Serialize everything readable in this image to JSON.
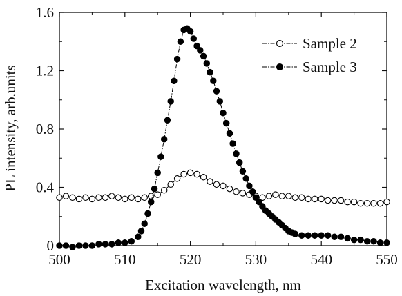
{
  "chart_data": {
    "type": "scatter",
    "xlabel": "Excitation wavelength, nm",
    "ylabel": "PL intensity, arb.units",
    "xlim": [
      500,
      550
    ],
    "ylim": [
      0,
      1.6
    ],
    "x_ticks": [
      "500",
      "510",
      "520",
      "530",
      "540",
      "550"
    ],
    "y_ticks": [
      "0",
      "0.4",
      "0.8",
      "1.2",
      "1.6"
    ],
    "grid": false,
    "legend_position": "top-right",
    "series": [
      {
        "name": "Sample 2",
        "marker": "open-circle",
        "line": "dash-dot",
        "color": "#000000",
        "points": [
          [
            500,
            0.33
          ],
          [
            501,
            0.34
          ],
          [
            502,
            0.33
          ],
          [
            503,
            0.32
          ],
          [
            504,
            0.33
          ],
          [
            505,
            0.32
          ],
          [
            506,
            0.33
          ],
          [
            507,
            0.33
          ],
          [
            508,
            0.34
          ],
          [
            509,
            0.33
          ],
          [
            510,
            0.32
          ],
          [
            511,
            0.33
          ],
          [
            512,
            0.32
          ],
          [
            513,
            0.33
          ],
          [
            514,
            0.34
          ],
          [
            515,
            0.35
          ],
          [
            516,
            0.38
          ],
          [
            517,
            0.42
          ],
          [
            518,
            0.46
          ],
          [
            519,
            0.49
          ],
          [
            520,
            0.5
          ],
          [
            521,
            0.49
          ],
          [
            522,
            0.47
          ],
          [
            523,
            0.44
          ],
          [
            524,
            0.42
          ],
          [
            525,
            0.41
          ],
          [
            526,
            0.39
          ],
          [
            527,
            0.37
          ],
          [
            528,
            0.36
          ],
          [
            529,
            0.35
          ],
          [
            530,
            0.34
          ],
          [
            531,
            0.33
          ],
          [
            532,
            0.34
          ],
          [
            533,
            0.35
          ],
          [
            534,
            0.34
          ],
          [
            535,
            0.34
          ],
          [
            536,
            0.33
          ],
          [
            537,
            0.33
          ],
          [
            538,
            0.32
          ],
          [
            539,
            0.32
          ],
          [
            540,
            0.32
          ],
          [
            541,
            0.31
          ],
          [
            542,
            0.31
          ],
          [
            543,
            0.31
          ],
          [
            544,
            0.3
          ],
          [
            545,
            0.3
          ],
          [
            546,
            0.29
          ],
          [
            547,
            0.29
          ],
          [
            548,
            0.29
          ],
          [
            549,
            0.29
          ],
          [
            550,
            0.3
          ]
        ]
      },
      {
        "name": "Sample 3",
        "marker": "filled-circle",
        "line": "dash-dot",
        "color": "#000000",
        "points": [
          [
            500,
            0.0
          ],
          [
            501,
            0.0
          ],
          [
            502,
            -0.01
          ],
          [
            503,
            0.0
          ],
          [
            504,
            0.0
          ],
          [
            505,
            0.0
          ],
          [
            506,
            0.01
          ],
          [
            507,
            0.01
          ],
          [
            508,
            0.01
          ],
          [
            509,
            0.02
          ],
          [
            510,
            0.02
          ],
          [
            511,
            0.03
          ],
          [
            512,
            0.06
          ],
          [
            512.5,
            0.1
          ],
          [
            513,
            0.15
          ],
          [
            513.5,
            0.22
          ],
          [
            514,
            0.3
          ],
          [
            514.5,
            0.39
          ],
          [
            515,
            0.5
          ],
          [
            515.5,
            0.61
          ],
          [
            516,
            0.73
          ],
          [
            516.5,
            0.86
          ],
          [
            517,
            0.99
          ],
          [
            517.5,
            1.13
          ],
          [
            518,
            1.28
          ],
          [
            518.5,
            1.4
          ],
          [
            519,
            1.48
          ],
          [
            519.5,
            1.49
          ],
          [
            520,
            1.47
          ],
          [
            520.5,
            1.42
          ],
          [
            521,
            1.37
          ],
          [
            521.5,
            1.34
          ],
          [
            522,
            1.3
          ],
          [
            522.5,
            1.25
          ],
          [
            523,
            1.19
          ],
          [
            523.5,
            1.13
          ],
          [
            524,
            1.06
          ],
          [
            524.5,
            0.99
          ],
          [
            525,
            0.91
          ],
          [
            525.5,
            0.84
          ],
          [
            526,
            0.77
          ],
          [
            526.5,
            0.7
          ],
          [
            527,
            0.63
          ],
          [
            527.5,
            0.57
          ],
          [
            528,
            0.51
          ],
          [
            528.5,
            0.46
          ],
          [
            529,
            0.41
          ],
          [
            529.5,
            0.37
          ],
          [
            530,
            0.33
          ],
          [
            530.5,
            0.3
          ],
          [
            531,
            0.27
          ],
          [
            531.5,
            0.24
          ],
          [
            532,
            0.22
          ],
          [
            532.5,
            0.2
          ],
          [
            533,
            0.18
          ],
          [
            533.5,
            0.16
          ],
          [
            534,
            0.14
          ],
          [
            534.5,
            0.12
          ],
          [
            535,
            0.1
          ],
          [
            535.5,
            0.09
          ],
          [
            536,
            0.08
          ],
          [
            537,
            0.07
          ],
          [
            538,
            0.07
          ],
          [
            539,
            0.07
          ],
          [
            540,
            0.07
          ],
          [
            541,
            0.07
          ],
          [
            542,
            0.06
          ],
          [
            543,
            0.06
          ],
          [
            544,
            0.05
          ],
          [
            545,
            0.04
          ],
          [
            546,
            0.04
          ],
          [
            547,
            0.03
          ],
          [
            548,
            0.03
          ],
          [
            549,
            0.02
          ],
          [
            550,
            0.02
          ]
        ]
      }
    ]
  }
}
